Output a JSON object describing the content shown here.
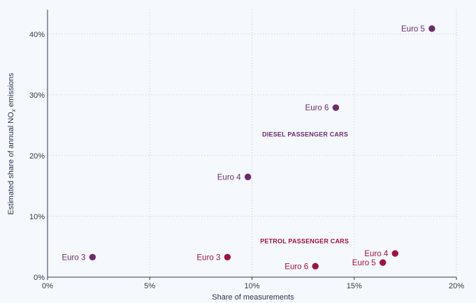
{
  "chart_data": {
    "type": "scatter",
    "xlabel": "Share of measurements",
    "ylabel_parts": [
      "Estimated share of annual NO",
      "x",
      " emissions"
    ],
    "xlim": [
      0,
      20
    ],
    "ylim": [
      0,
      44
    ],
    "x_ticks": [
      {
        "value": 0,
        "label": "0%"
      },
      {
        "value": 5,
        "label": "5%"
      },
      {
        "value": 10,
        "label": "10%"
      },
      {
        "value": 15,
        "label": "15%"
      },
      {
        "value": 20,
        "label": "20%"
      }
    ],
    "y_ticks": [
      {
        "value": 0,
        "label": "0%"
      },
      {
        "value": 10,
        "label": "10%"
      },
      {
        "value": 20,
        "label": "20%"
      },
      {
        "value": 30,
        "label": "30%"
      },
      {
        "value": 40,
        "label": "40%"
      }
    ],
    "grid": true,
    "colors": {
      "diesel": "#6b2c6e",
      "petrol": "#a3103f"
    },
    "groups": [
      {
        "name": "DIESEL PASSENGER CARS",
        "color_key": "diesel",
        "label_at": {
          "x": 10.5,
          "y": 23.5
        },
        "points": [
          {
            "label": "Euro 3",
            "x": 2.2,
            "y": 3.3
          },
          {
            "label": "Euro 4",
            "x": 9.8,
            "y": 16.5
          },
          {
            "label": "Euro 6",
            "x": 14.1,
            "y": 27.9
          },
          {
            "label": "Euro 5",
            "x": 18.8,
            "y": 40.9
          }
        ]
      },
      {
        "name": "PETROL PASSENGER CARS",
        "color_key": "petrol",
        "label_at": {
          "x": 10.4,
          "y": 5.9
        },
        "points": [
          {
            "label": "Euro 3",
            "x": 8.8,
            "y": 3.3
          },
          {
            "label": "Euro 6",
            "x": 13.1,
            "y": 1.8
          },
          {
            "label": "Euro 5",
            "x": 16.4,
            "y": 2.4
          },
          {
            "label": "Euro 4",
            "x": 17.0,
            "y": 3.9
          }
        ]
      }
    ]
  }
}
